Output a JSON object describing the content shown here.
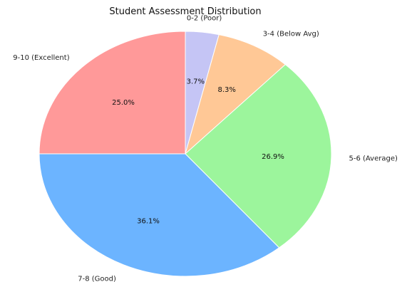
{
  "chart_data": {
    "type": "pie",
    "title": "Student Assessment Distribution",
    "categories": [
      "0-2 (Poor)",
      "3-4 (Below Avg)",
      "5-6 (Average)",
      "7-8 (Good)",
      "9-10 (Excellent)"
    ],
    "values": [
      3.7,
      8.3,
      26.9,
      36.1,
      25.0
    ],
    "value_labels": [
      "3.7%",
      "8.3%",
      "26.9%",
      "36.1%",
      "25.0%"
    ],
    "colors": [
      "#c5c5f5",
      "#ffc896",
      "#9cf59c",
      "#6cb4ff",
      "#ff9999"
    ],
    "start_angle_deg": 90,
    "direction": "clockwise"
  }
}
